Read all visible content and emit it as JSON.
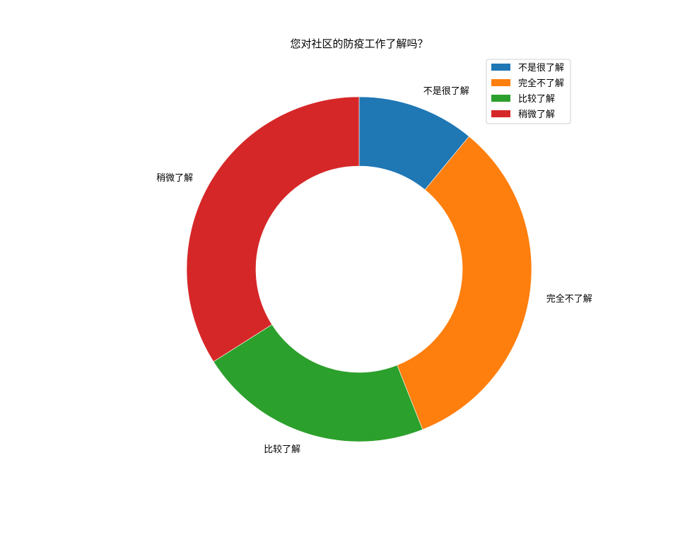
{
  "chart_data": {
    "type": "pie",
    "variant": "donut",
    "title": "您对社区的防疫工作了解吗？",
    "categories": [
      "不是很了解",
      "完全不了解",
      "比较了解",
      "稍微了解"
    ],
    "values": [
      11,
      33,
      22,
      34
    ],
    "value_unit": "percent of respondents (estimated from slice angles)",
    "colors": [
      "#1f77b4",
      "#ff7f0e",
      "#2ca02c",
      "#d62728"
    ],
    "start_angle": "top (12 o'clock)",
    "direction": "clockwise",
    "legend": {
      "placement": "upper-right",
      "entries": [
        "不是很了解",
        "完全不了解",
        "比较了解",
        "稍微了解"
      ]
    },
    "edge_color": "#ffffff"
  }
}
